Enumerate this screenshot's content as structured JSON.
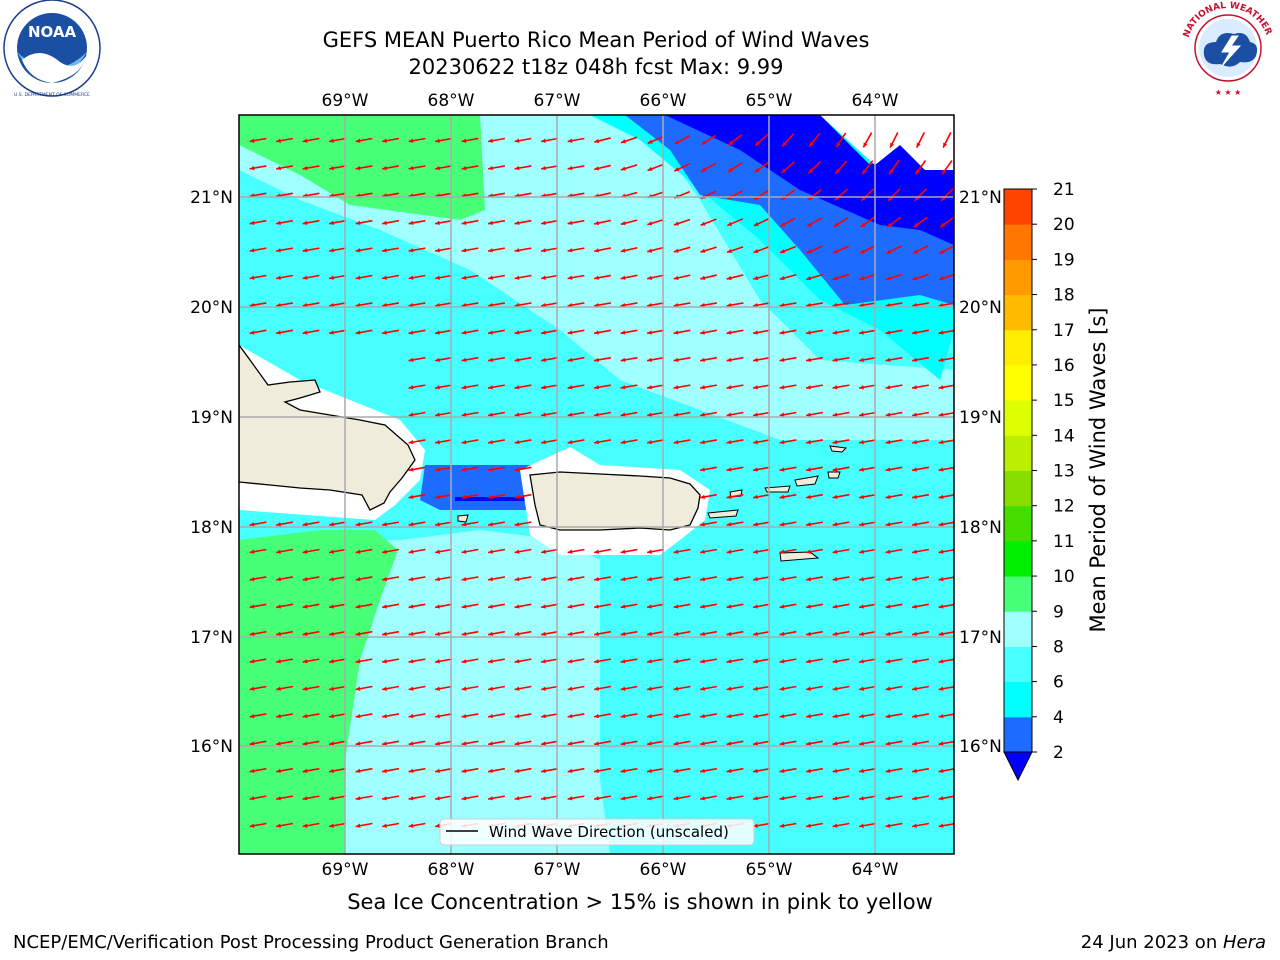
{
  "header": {
    "title_line1": "GEFS MEAN Puerto Rico Mean Period of Wind Waves",
    "title_line2": "20230622 t18z 048h fcst   Max: 9.99"
  },
  "logos": {
    "left": {
      "name": "noaa-logo",
      "text": "NOAA",
      "ring_text": "NATIONAL OCEANIC AND ATMOSPHERIC ADMINISTRATION · U.S. DEPARTMENT OF COMMERCE"
    },
    "right": {
      "name": "nws-logo",
      "ring_text": "NATIONAL WEATHER SERVICE"
    }
  },
  "map": {
    "lon_labels": [
      "69°W",
      "68°W",
      "67°W",
      "66°W",
      "65°W",
      "64°W"
    ],
    "lat_labels": [
      "21°N",
      "20°N",
      "19°N",
      "18°N",
      "17°N",
      "16°N"
    ],
    "legend_label": "Wind Wave Direction (unscaled)",
    "arrow_color": "#ff0000",
    "land_color": "#efecdc"
  },
  "colorbar": {
    "label": "Mean Period of Wind Waves [s]",
    "ticks": [
      "2",
      "4",
      "6",
      "8",
      "9",
      "10",
      "11",
      "12",
      "13",
      "14",
      "15",
      "16",
      "17",
      "18",
      "19",
      "20",
      "21"
    ],
    "colors": [
      "#1e6cff",
      "#00ffff",
      "#48ffff",
      "#a0ffff",
      "#48ff78",
      "#00ee00",
      "#44dd00",
      "#88dd00",
      "#bbee00",
      "#ddff00",
      "#ffff00",
      "#ffee00",
      "#ffbb00",
      "#ff9900",
      "#ff7700",
      "#ff4400"
    ],
    "under_color": "#0000ff",
    "top_color": "#ff0000"
  },
  "footer": {
    "note": "Sea Ice Concentration > 15% is shown in pink to yellow",
    "left": "NCEP/EMC/Verification Post Processing Product Generation Branch",
    "right_date": "24 Jun 2023 on ",
    "right_host": "Hera"
  }
}
